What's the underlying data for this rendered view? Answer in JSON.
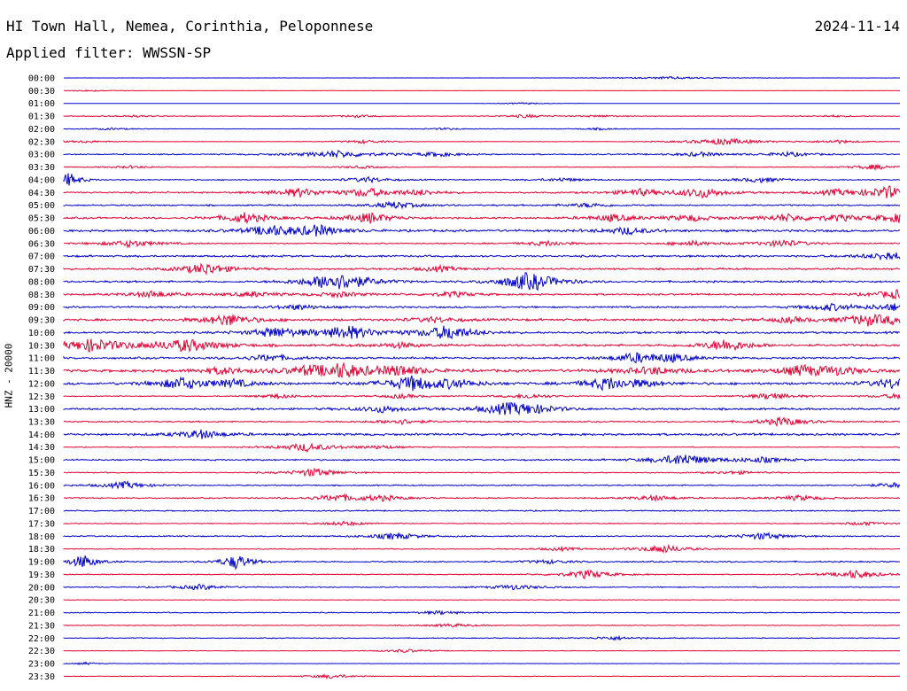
{
  "header": {
    "station": "HI Town Hall, Nemea, Corinthia, Peloponnese",
    "date": "2024-11-14",
    "filter": "Applied filter: WWSSN-SP",
    "channel": "HNZ - 20000"
  },
  "colors": {
    "blue": "#0000cc",
    "red": "#e60033"
  },
  "chart_data": {
    "type": "line",
    "title": "HI Town Hall, Nemea, Corinthia, Peloponnese",
    "ylabel": "HNZ - 20000",
    "x_minutes": [
      0,
      30
    ],
    "grid": false,
    "series": [
      {
        "name": "00:00",
        "color": "blue",
        "noise": 0.1,
        "events": [
          [
            21.8,
            2,
            1.5
          ]
        ]
      },
      {
        "name": "00:30",
        "color": "red",
        "noise": 0.1,
        "events": [
          [
            1.0,
            1,
            1
          ]
        ]
      },
      {
        "name": "01:00",
        "color": "blue",
        "noise": 0.1,
        "events": [
          [
            16.5,
            1,
            1
          ]
        ]
      },
      {
        "name": "01:30",
        "color": "red",
        "noise": 0.3,
        "events": [
          [
            2.5,
            1,
            1.2
          ],
          [
            10.5,
            1,
            1.5
          ],
          [
            16.6,
            1,
            2
          ],
          [
            19.3,
            1,
            1.2
          ],
          [
            27.6,
            1,
            1.2
          ]
        ]
      },
      {
        "name": "02:00",
        "color": "blue",
        "noise": 0.2,
        "events": [
          [
            1.7,
            1,
            1.2
          ],
          [
            13.7,
            1,
            1.2
          ],
          [
            19.2,
            1,
            1.2
          ]
        ]
      },
      {
        "name": "02:30",
        "color": "red",
        "noise": 0.3,
        "events": [
          [
            0.8,
            1,
            1.5
          ],
          [
            10.8,
            1,
            2
          ],
          [
            23.7,
            1.5,
            4
          ],
          [
            27.8,
            1,
            2
          ]
        ]
      },
      {
        "name": "03:00",
        "color": "blue",
        "noise": 0.8,
        "events": [
          [
            9.8,
            1.5,
            4
          ],
          [
            13.4,
            1,
            2.5
          ],
          [
            22.8,
            1,
            2.5
          ],
          [
            26.0,
            1,
            2.5
          ]
        ]
      },
      {
        "name": "03:30",
        "color": "red",
        "noise": 0.4,
        "events": [
          [
            2.4,
            1,
            1.5
          ],
          [
            10.7,
            1,
            1.5
          ],
          [
            29.1,
            1,
            3
          ]
        ]
      },
      {
        "name": "04:00",
        "color": "blue",
        "noise": 0.7,
        "events": [
          [
            0.2,
            0.5,
            8
          ],
          [
            10.9,
            1,
            3
          ],
          [
            17.9,
            1,
            2
          ],
          [
            25.0,
            1,
            3
          ]
        ]
      },
      {
        "name": "04:30",
        "color": "red",
        "noise": 1.0,
        "events": [
          [
            8.4,
            1,
            5
          ],
          [
            10.9,
            1,
            5
          ],
          [
            12.8,
            1,
            3
          ],
          [
            20.6,
            1,
            4
          ],
          [
            22.9,
            1,
            6
          ],
          [
            27.7,
            1,
            3
          ],
          [
            29.6,
            1,
            7
          ]
        ]
      },
      {
        "name": "05:00",
        "color": "blue",
        "noise": 1.0,
        "events": [
          [
            11.9,
            1,
            4
          ],
          [
            18.8,
            1,
            2.5
          ]
        ]
      },
      {
        "name": "05:30",
        "color": "red",
        "noise": 1.2,
        "events": [
          [
            6.5,
            1,
            6
          ],
          [
            11.0,
            1,
            6
          ],
          [
            19.7,
            1,
            4
          ],
          [
            22.5,
            1,
            3.5
          ],
          [
            25.9,
            1,
            4
          ],
          [
            27.8,
            1,
            3
          ],
          [
            30.0,
            1,
            5
          ]
        ]
      },
      {
        "name": "06:00",
        "color": "blue",
        "noise": 1.5,
        "events": [
          [
            7.4,
            1,
            6
          ],
          [
            9.1,
            1,
            6
          ],
          [
            20.2,
            1,
            4
          ]
        ]
      },
      {
        "name": "06:30",
        "color": "red",
        "noise": 0.8,
        "events": [
          [
            2.4,
            1.2,
            4
          ],
          [
            17.4,
            1,
            3
          ],
          [
            22.5,
            1,
            3
          ],
          [
            25.8,
            1,
            4.5
          ]
        ]
      },
      {
        "name": "07:00",
        "color": "blue",
        "noise": 1.3,
        "events": [
          [
            29.6,
            1,
            5
          ]
        ]
      },
      {
        "name": "07:30",
        "color": "red",
        "noise": 1.2,
        "events": [
          [
            5.1,
            1,
            7
          ],
          [
            13.5,
            1,
            3
          ]
        ]
      },
      {
        "name": "08:00",
        "color": "blue",
        "noise": 1.3,
        "events": [
          [
            9.5,
            1,
            7
          ],
          [
            10.2,
            1.2,
            6
          ],
          [
            16.5,
            1,
            7
          ],
          [
            17.0,
            1,
            5
          ]
        ]
      },
      {
        "name": "08:30",
        "color": "red",
        "noise": 1.1,
        "events": [
          [
            3.2,
            1,
            4
          ],
          [
            6.8,
            1,
            3
          ],
          [
            9.9,
            1,
            3
          ],
          [
            14.0,
            1,
            3
          ],
          [
            29.9,
            1,
            5
          ]
        ]
      },
      {
        "name": "09:00",
        "color": "blue",
        "noise": 1.2,
        "events": [
          [
            8.4,
            1,
            3
          ],
          [
            27.5,
            1,
            4
          ],
          [
            30.3,
            1,
            8
          ]
        ]
      },
      {
        "name": "09:30",
        "color": "red",
        "noise": 1.5,
        "events": [
          [
            5.9,
            1,
            7
          ],
          [
            13.3,
            1,
            3
          ],
          [
            26.0,
            1,
            3
          ],
          [
            28.8,
            1,
            6
          ],
          [
            30.3,
            1,
            6
          ]
        ]
      },
      {
        "name": "10:00",
        "color": "blue",
        "noise": 1.4,
        "events": [
          [
            7.6,
            1,
            6
          ],
          [
            10.2,
            1.2,
            8
          ],
          [
            13.6,
            1,
            3
          ],
          [
            13.9,
            1,
            6
          ]
        ]
      },
      {
        "name": "10:30",
        "color": "red",
        "noise": 1.4,
        "events": [
          [
            1.0,
            1.5,
            7
          ],
          [
            4.4,
            1.5,
            7
          ],
          [
            12.0,
            1,
            3
          ],
          [
            23.8,
            1,
            7
          ]
        ]
      },
      {
        "name": "11:00",
        "color": "blue",
        "noise": 1.3,
        "events": [
          [
            7.4,
            1,
            4
          ],
          [
            20.5,
            1,
            5
          ],
          [
            21.8,
            1,
            4
          ]
        ]
      },
      {
        "name": "11:30",
        "color": "red",
        "noise": 1.8,
        "events": [
          [
            5.7,
            1,
            4
          ],
          [
            8.8,
            1,
            4
          ],
          [
            10.0,
            1.2,
            8
          ],
          [
            12.1,
            1,
            6
          ],
          [
            21.1,
            1.5,
            4
          ],
          [
            26.5,
            1,
            6
          ],
          [
            27.8,
            1,
            4
          ]
        ]
      },
      {
        "name": "12:00",
        "color": "blue",
        "noise": 1.6,
        "events": [
          [
            4.2,
            1,
            7
          ],
          [
            6.1,
            1,
            4
          ],
          [
            12.5,
            1.2,
            8
          ],
          [
            14.0,
            1,
            4
          ],
          [
            19.5,
            1,
            7
          ],
          [
            20.8,
            1,
            3
          ],
          [
            29.8,
            1,
            6
          ]
        ]
      },
      {
        "name": "12:30",
        "color": "red",
        "noise": 0.6,
        "events": [
          [
            7.7,
            1,
            2.5
          ],
          [
            12.1,
            1,
            2.5
          ],
          [
            16.7,
            1,
            3
          ],
          [
            25.4,
            1,
            4
          ],
          [
            30.3,
            1,
            5
          ]
        ]
      },
      {
        "name": "13:00",
        "color": "blue",
        "noise": 1.3,
        "events": [
          [
            11.4,
            1,
            4
          ],
          [
            15.9,
            1.2,
            6
          ],
          [
            16.8,
            1,
            4
          ]
        ]
      },
      {
        "name": "13:30",
        "color": "red",
        "noise": 0.9,
        "events": [
          [
            12.1,
            1,
            3
          ],
          [
            25.8,
            1,
            5
          ]
        ]
      },
      {
        "name": "14:00",
        "color": "blue",
        "noise": 1.5,
        "events": [
          [
            4.9,
            1,
            5
          ]
        ]
      },
      {
        "name": "14:30",
        "color": "red",
        "noise": 0.5,
        "events": [
          [
            8.7,
            1.2,
            5
          ],
          [
            11.4,
            1,
            2
          ]
        ]
      },
      {
        "name": "15:00",
        "color": "blue",
        "noise": 1.0,
        "events": [
          [
            22.2,
            1.2,
            7
          ],
          [
            25.1,
            1,
            3
          ]
        ]
      },
      {
        "name": "15:30",
        "color": "red",
        "noise": 0.6,
        "events": [
          [
            9.0,
            1,
            5
          ],
          [
            24.1,
            1,
            2
          ]
        ]
      },
      {
        "name": "16:00",
        "color": "blue",
        "noise": 0.8,
        "events": [
          [
            2.2,
            1,
            4
          ],
          [
            29.9,
            1,
            3
          ]
        ]
      },
      {
        "name": "16:30",
        "color": "red",
        "noise": 0.8,
        "events": [
          [
            9.8,
            1,
            4
          ],
          [
            11.4,
            1,
            3
          ],
          [
            21.2,
            1,
            3
          ],
          [
            26.4,
            1,
            3
          ]
        ]
      },
      {
        "name": "17:00",
        "color": "blue",
        "noise": 0.8,
        "events": []
      },
      {
        "name": "17:30",
        "color": "red",
        "noise": 0.6,
        "events": [
          [
            10.1,
            1,
            2.5
          ],
          [
            28.7,
            1,
            2
          ]
        ]
      },
      {
        "name": "18:00",
        "color": "blue",
        "noise": 0.8,
        "events": [
          [
            11.9,
            1,
            4
          ],
          [
            25.1,
            1,
            4
          ]
        ]
      },
      {
        "name": "18:30",
        "color": "red",
        "noise": 0.6,
        "events": [
          [
            21.5,
            1,
            5
          ],
          [
            17.8,
            1,
            2
          ]
        ]
      },
      {
        "name": "19:00",
        "color": "blue",
        "noise": 0.9,
        "events": [
          [
            0.7,
            0.6,
            8
          ],
          [
            6.2,
            0.6,
            9
          ],
          [
            17.4,
            1,
            2
          ]
        ]
      },
      {
        "name": "19:30",
        "color": "red",
        "noise": 0.6,
        "events": [
          [
            18.8,
            1,
            5
          ],
          [
            28.4,
            1,
            5
          ]
        ]
      },
      {
        "name": "20:00",
        "color": "blue",
        "noise": 0.7,
        "events": [
          [
            4.9,
            1,
            3
          ],
          [
            16.2,
            1,
            3
          ]
        ]
      },
      {
        "name": "20:30",
        "color": "red",
        "noise": 0.3,
        "events": []
      },
      {
        "name": "21:00",
        "color": "blue",
        "noise": 0.6,
        "events": [
          [
            13.5,
            1,
            2
          ]
        ]
      },
      {
        "name": "21:30",
        "color": "red",
        "noise": 0.5,
        "events": [
          [
            13.9,
            1,
            2
          ]
        ]
      },
      {
        "name": "22:00",
        "color": "blue",
        "noise": 0.6,
        "events": [
          [
            19.8,
            1,
            2
          ]
        ]
      },
      {
        "name": "22:30",
        "color": "red",
        "noise": 0.3,
        "events": [
          [
            12.3,
            1,
            2
          ]
        ]
      },
      {
        "name": "23:00",
        "color": "blue",
        "noise": 0.2,
        "events": [
          [
            0.8,
            0.5,
            1.5
          ]
        ]
      },
      {
        "name": "23:30",
        "color": "red",
        "noise": 0.3,
        "events": [
          [
            9.6,
            1,
            2.5
          ]
        ]
      }
    ]
  }
}
